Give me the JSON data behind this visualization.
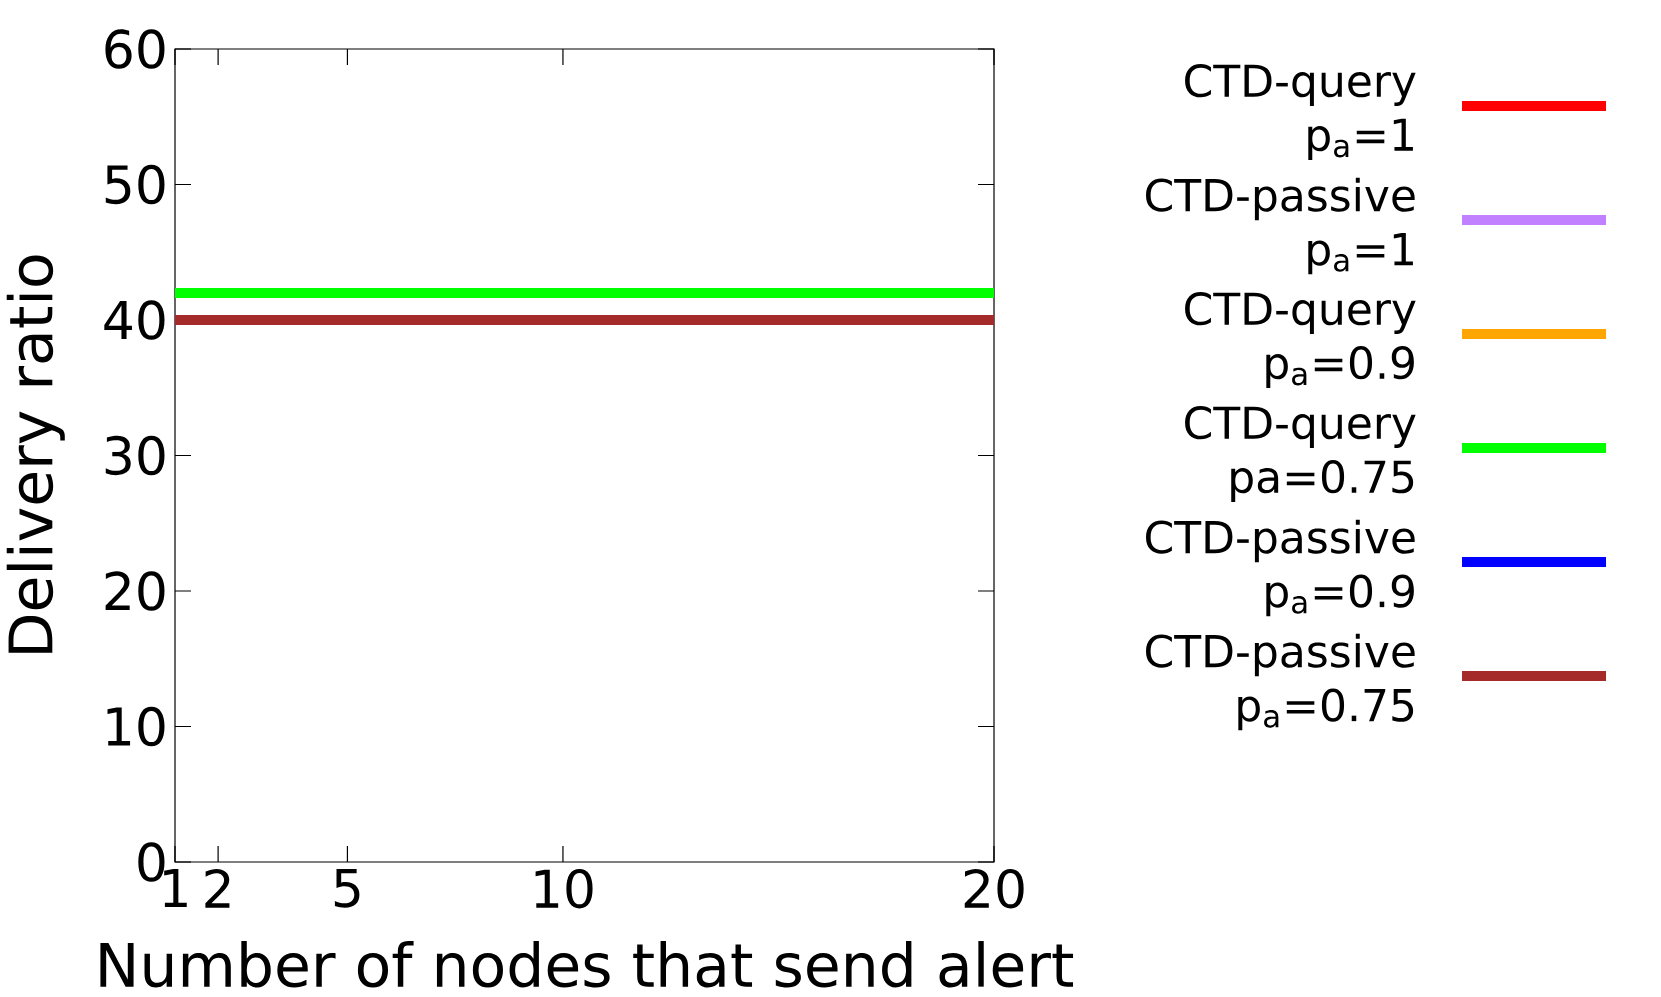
{
  "chart_data": {
    "type": "line",
    "xlabel": "Number of nodes that send alert",
    "ylabel": "Delivery ratio",
    "x": [
      1,
      20
    ],
    "xlim": [
      1,
      20
    ],
    "xticks": [
      1,
      2,
      5,
      10,
      20
    ],
    "ylim": [
      0,
      60
    ],
    "yticks": [
      0,
      10,
      20,
      30,
      40,
      50,
      60
    ],
    "legend": "right",
    "grid": false,
    "line_style": "solid",
    "series": [
      {
        "name": "CTD-query p$_{a}$=1",
        "color": "#ff0000",
        "values": [
          null,
          null
        ]
      },
      {
        "name": "CTD-passive p$_{a}$=1",
        "color": "#c080ff",
        "values": [
          null,
          null
        ]
      },
      {
        "name": "CTD-query p$_{a}$=0.9",
        "color": "#ffa500",
        "values": [
          null,
          null
        ]
      },
      {
        "name": "CTD-query pa=0.75",
        "color": "#00ff00",
        "values": [
          42,
          42
        ]
      },
      {
        "name": "CTD-passive p$_{a}$=0.9",
        "color": "#0000ff",
        "values": [
          null,
          null
        ]
      },
      {
        "name": "CTD-passive p$_{a}$=0.75",
        "color": "#a52a2a",
        "values": [
          40,
          40
        ]
      }
    ]
  }
}
